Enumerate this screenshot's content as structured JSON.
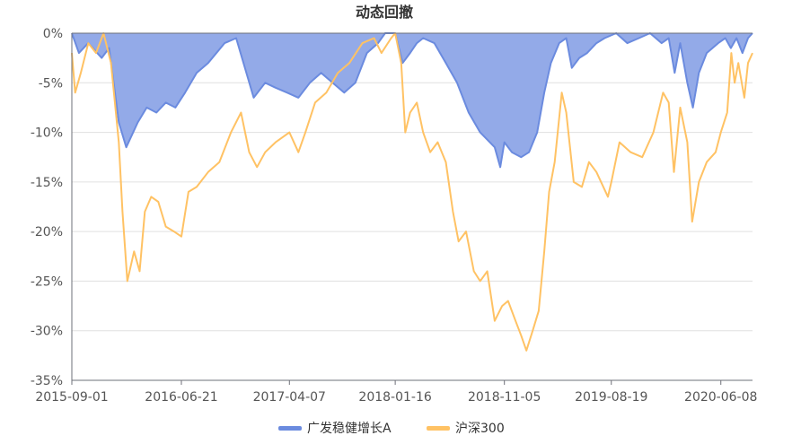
{
  "chart_data": {
    "type": "area",
    "title": "动态回撤",
    "xlabel": "",
    "ylabel": "",
    "x_ticks": [
      "2015-09-01",
      "2016-06-21",
      "2017-04-07",
      "2018-01-16",
      "2018-11-05",
      "2019-08-19",
      "2020-06-08"
    ],
    "y_ticks": [
      "0%",
      "-5%",
      "-10%",
      "-15%",
      "-20%",
      "-25%",
      "-30%",
      "-35%"
    ],
    "ylim": [
      -35,
      0
    ],
    "grid": true,
    "legend_position": "bottom",
    "x_start": "2015-09-01",
    "x_end": "2020-09-01",
    "series": [
      {
        "name": "广发稳健增长A",
        "type": "area",
        "color": "#6b8bdf",
        "fill": "#93aae8",
        "points": [
          [
            "2015-09-01",
            0
          ],
          [
            "2015-09-20",
            -2
          ],
          [
            "2015-10-15",
            -1
          ],
          [
            "2015-11-20",
            -2.5
          ],
          [
            "2015-12-10",
            -1.5
          ],
          [
            "2016-01-05",
            -9
          ],
          [
            "2016-01-25",
            -11.5
          ],
          [
            "2016-02-25",
            -9
          ],
          [
            "2016-03-20",
            -7.5
          ],
          [
            "2016-04-15",
            -8
          ],
          [
            "2016-05-10",
            -7
          ],
          [
            "2016-06-05",
            -7.5
          ],
          [
            "2016-07-01",
            -6
          ],
          [
            "2016-08-01",
            -4
          ],
          [
            "2016-09-01",
            -3
          ],
          [
            "2016-10-15",
            -1
          ],
          [
            "2016-11-15",
            -0.5
          ],
          [
            "2017-01-01",
            -6.5
          ],
          [
            "2017-02-01",
            -5
          ],
          [
            "2017-03-01",
            -5.5
          ],
          [
            "2017-04-01",
            -6
          ],
          [
            "2017-05-01",
            -6.5
          ],
          [
            "2017-06-01",
            -5
          ],
          [
            "2017-07-01",
            -4
          ],
          [
            "2017-08-01",
            -5
          ],
          [
            "2017-09-01",
            -6
          ],
          [
            "2017-10-01",
            -5
          ],
          [
            "2017-11-01",
            -2
          ],
          [
            "2017-12-01",
            -1
          ],
          [
            "2017-12-20",
            0
          ],
          [
            "2018-01-16",
            0
          ],
          [
            "2018-02-05",
            -3
          ],
          [
            "2018-02-25",
            -2
          ],
          [
            "2018-03-15",
            -1
          ],
          [
            "2018-04-01",
            -0.5
          ],
          [
            "2018-05-01",
            -1
          ],
          [
            "2018-06-01",
            -3
          ],
          [
            "2018-07-01",
            -5
          ],
          [
            "2018-08-01",
            -8
          ],
          [
            "2018-09-01",
            -10
          ],
          [
            "2018-10-10",
            -11.5
          ],
          [
            "2018-10-25",
            -13.5
          ],
          [
            "2018-11-05",
            -11
          ],
          [
            "2018-11-25",
            -12
          ],
          [
            "2018-12-20",
            -12.5
          ],
          [
            "2019-01-10",
            -12
          ],
          [
            "2019-02-01",
            -10
          ],
          [
            "2019-02-20",
            -6
          ],
          [
            "2019-03-10",
            -3
          ],
          [
            "2019-04-01",
            -1
          ],
          [
            "2019-04-20",
            -0.5
          ],
          [
            "2019-05-05",
            -3.5
          ],
          [
            "2019-05-25",
            -2.5
          ],
          [
            "2019-06-15",
            -2
          ],
          [
            "2019-07-10",
            -1
          ],
          [
            "2019-08-01",
            -0.5
          ],
          [
            "2019-09-01",
            0
          ],
          [
            "2019-10-01",
            -1
          ],
          [
            "2019-11-01",
            -0.5
          ],
          [
            "2019-12-01",
            0
          ],
          [
            "2020-01-01",
            -1
          ],
          [
            "2020-01-20",
            -0.5
          ],
          [
            "2020-02-05",
            -4
          ],
          [
            "2020-02-20",
            -1
          ],
          [
            "2020-03-10",
            -5
          ],
          [
            "2020-03-25",
            -7.5
          ],
          [
            "2020-04-10",
            -4
          ],
          [
            "2020-05-01",
            -2
          ],
          [
            "2020-06-01",
            -1
          ],
          [
            "2020-06-20",
            -0.5
          ],
          [
            "2020-07-05",
            -1.5
          ],
          [
            "2020-07-20",
            -0.5
          ],
          [
            "2020-08-05",
            -2
          ],
          [
            "2020-08-20",
            -0.5
          ],
          [
            "2020-09-01",
            0
          ]
        ]
      },
      {
        "name": "沪深300",
        "type": "line",
        "color": "#ffc264",
        "points": [
          [
            "2015-09-01",
            -2
          ],
          [
            "2015-09-10",
            -6
          ],
          [
            "2015-09-25",
            -4
          ],
          [
            "2015-10-15",
            -1
          ],
          [
            "2015-11-05",
            -2
          ],
          [
            "2015-11-25",
            0
          ],
          [
            "2015-12-15",
            -3
          ],
          [
            "2016-01-05",
            -11
          ],
          [
            "2016-01-15",
            -18
          ],
          [
            "2016-01-28",
            -25
          ],
          [
            "2016-02-15",
            -22
          ],
          [
            "2016-03-01",
            -24
          ],
          [
            "2016-03-15",
            -18
          ],
          [
            "2016-04-01",
            -16.5
          ],
          [
            "2016-04-20",
            -17
          ],
          [
            "2016-05-10",
            -19.5
          ],
          [
            "2016-06-01",
            -20
          ],
          [
            "2016-06-21",
            -20.5
          ],
          [
            "2016-07-10",
            -16
          ],
          [
            "2016-08-01",
            -15.5
          ],
          [
            "2016-09-01",
            -14
          ],
          [
            "2016-10-01",
            -13
          ],
          [
            "2016-11-01",
            -10
          ],
          [
            "2016-11-28",
            -8
          ],
          [
            "2016-12-20",
            -12
          ],
          [
            "2017-01-10",
            -13.5
          ],
          [
            "2017-02-01",
            -12
          ],
          [
            "2017-03-01",
            -11
          ],
          [
            "2017-04-07",
            -10
          ],
          [
            "2017-05-01",
            -12
          ],
          [
            "2017-05-20",
            -10
          ],
          [
            "2017-06-15",
            -7
          ],
          [
            "2017-07-15",
            -6
          ],
          [
            "2017-08-15",
            -4
          ],
          [
            "2017-09-15",
            -3
          ],
          [
            "2017-10-20",
            -1
          ],
          [
            "2017-11-20",
            -0.5
          ],
          [
            "2017-12-10",
            -2
          ],
          [
            "2018-01-05",
            -0.5
          ],
          [
            "2018-01-16",
            0
          ],
          [
            "2018-02-01",
            -3
          ],
          [
            "2018-02-12",
            -10
          ],
          [
            "2018-02-25",
            -8
          ],
          [
            "2018-03-15",
            -7
          ],
          [
            "2018-04-01",
            -10
          ],
          [
            "2018-04-20",
            -12
          ],
          [
            "2018-05-10",
            -11
          ],
          [
            "2018-06-01",
            -13
          ],
          [
            "2018-06-20",
            -18
          ],
          [
            "2018-07-05",
            -21
          ],
          [
            "2018-07-25",
            -20
          ],
          [
            "2018-08-15",
            -24
          ],
          [
            "2018-09-01",
            -25
          ],
          [
            "2018-09-20",
            -24
          ],
          [
            "2018-10-10",
            -29
          ],
          [
            "2018-10-30",
            -27.5
          ],
          [
            "2018-11-15",
            -27
          ],
          [
            "2018-12-05",
            -29
          ],
          [
            "2018-12-20",
            -30.5
          ],
          [
            "2019-01-03",
            -32
          ],
          [
            "2019-01-20",
            -30
          ],
          [
            "2019-02-05",
            -28
          ],
          [
            "2019-02-20",
            -22
          ],
          [
            "2019-03-05",
            -16
          ],
          [
            "2019-03-20",
            -13
          ],
          [
            "2019-04-08",
            -6
          ],
          [
            "2019-04-20",
            -8
          ],
          [
            "2019-05-10",
            -15
          ],
          [
            "2019-06-01",
            -15.5
          ],
          [
            "2019-06-20",
            -13
          ],
          [
            "2019-07-10",
            -14
          ],
          [
            "2019-08-10",
            -16.5
          ],
          [
            "2019-08-19",
            -15
          ],
          [
            "2019-09-10",
            -11
          ],
          [
            "2019-10-10",
            -12
          ],
          [
            "2019-11-10",
            -12.5
          ],
          [
            "2019-12-10",
            -10
          ],
          [
            "2020-01-05",
            -6
          ],
          [
            "2020-01-20",
            -7
          ],
          [
            "2020-02-03",
            -14
          ],
          [
            "2020-02-20",
            -7.5
          ],
          [
            "2020-03-10",
            -11
          ],
          [
            "2020-03-23",
            -19
          ],
          [
            "2020-04-10",
            -15
          ],
          [
            "2020-05-01",
            -13
          ],
          [
            "2020-05-25",
            -12
          ],
          [
            "2020-06-08",
            -10
          ],
          [
            "2020-06-25",
            -8
          ],
          [
            "2020-07-06",
            -2
          ],
          [
            "2020-07-15",
            -5
          ],
          [
            "2020-07-25",
            -3
          ],
          [
            "2020-08-10",
            -6.5
          ],
          [
            "2020-08-20",
            -3
          ],
          [
            "2020-09-01",
            -2
          ]
        ]
      }
    ]
  }
}
